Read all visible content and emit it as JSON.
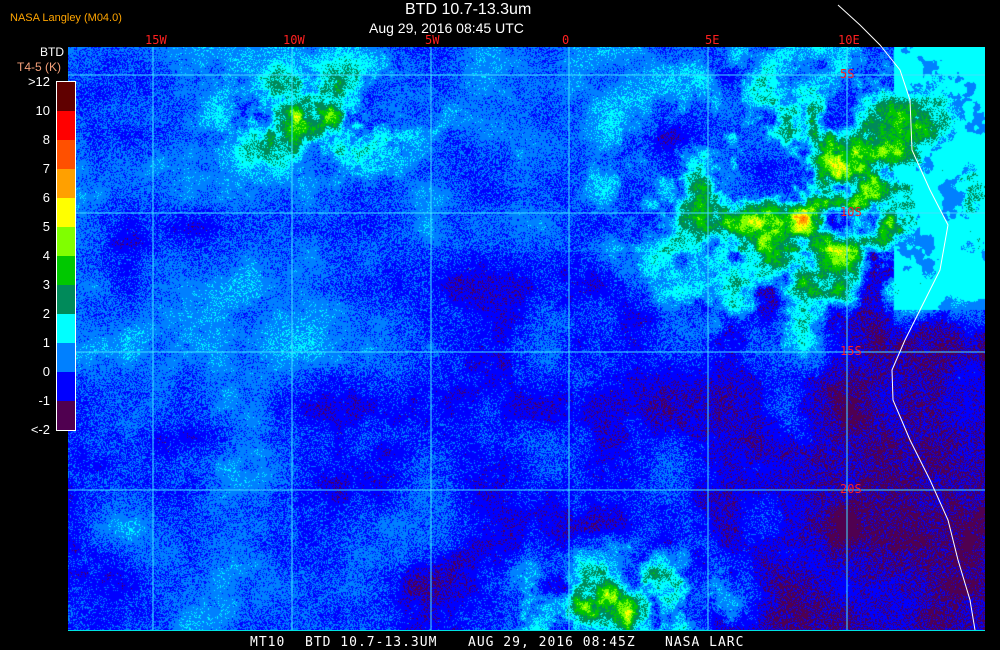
{
  "header": {
    "brand": "NASA Langley (M04.0)",
    "title": "BTD 10.7-13.3um",
    "subtitle": "Aug 29, 2016 08:45 UTC"
  },
  "colorbar": {
    "title": "BTD",
    "unit": "T4-5 (K)",
    "labels": [
      ">12",
      "10",
      "8",
      "7",
      "6",
      "5",
      "4",
      "3",
      "2",
      "1",
      "0",
      "-1",
      "<-2"
    ],
    "colors": [
      "#600000",
      "#ff0000",
      "#ff5000",
      "#ffa000",
      "#ffff00",
      "#80ff00",
      "#00c800",
      "#008a5a",
      "#00ffff",
      "#0080ff",
      "#0000ff",
      "#500050"
    ]
  },
  "map": {
    "longitude_labels": [
      "15W",
      "10W",
      "5W",
      "0",
      "5E",
      "10E"
    ],
    "latitude_labels": [
      "5S",
      "10S",
      "15S",
      "20S"
    ],
    "grid_color": "#40e0ff",
    "label_color": "#ff2020",
    "coastline_color": "#ffffff"
  },
  "footer": {
    "satellite": "MT10",
    "product": "BTD 10.7-13.3UM",
    "datetime": "AUG 29, 2016 08:45Z",
    "source": "NASA LARC"
  }
}
